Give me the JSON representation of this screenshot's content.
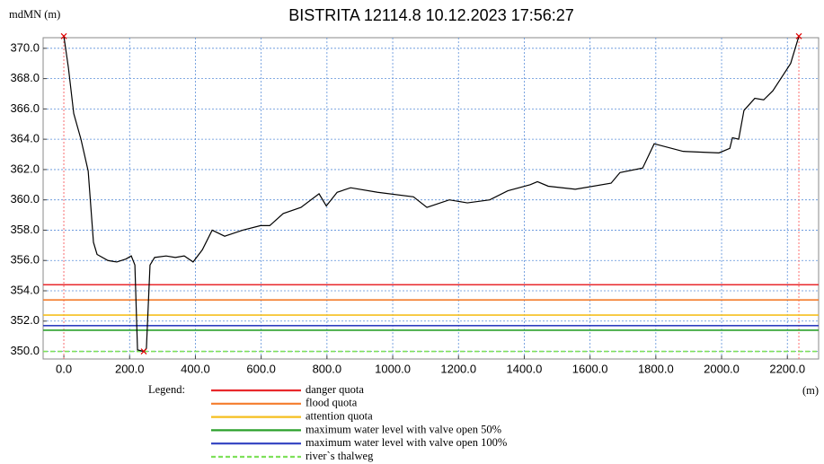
{
  "chart_data": {
    "type": "line",
    "title": "BISTRITA 12114.8  10.12.2023 17:56:27",
    "y_label": "mdMN (m)",
    "x_label": "(m)",
    "legend_title": "Legend:",
    "xlim": [
      -63,
      2295
    ],
    "ylim": [
      349.5,
      370.7
    ],
    "xticks": [
      {
        "value": 0,
        "label": "0.0"
      },
      {
        "value": 200,
        "label": "200.0"
      },
      {
        "value": 400,
        "label": "400.0"
      },
      {
        "value": 600,
        "label": "600.0"
      },
      {
        "value": 800,
        "label": "800.0"
      },
      {
        "value": 1000,
        "label": "1000.0"
      },
      {
        "value": 1200,
        "label": "1200.0"
      },
      {
        "value": 1400,
        "label": "1400.0"
      },
      {
        "value": 1600,
        "label": "1600.0"
      },
      {
        "value": 1800,
        "label": "1800.0"
      },
      {
        "value": 2000,
        "label": "2000.0"
      },
      {
        "value": 2200,
        "label": "2200.0"
      }
    ],
    "yticks": [
      {
        "value": 350,
        "label": "350.0"
      },
      {
        "value": 352,
        "label": "352.0"
      },
      {
        "value": 354,
        "label": "354.0"
      },
      {
        "value": 356,
        "label": "356.0"
      },
      {
        "value": 358,
        "label": "358.0"
      },
      {
        "value": 360,
        "label": "360.0"
      },
      {
        "value": 362,
        "label": "362.0"
      },
      {
        "value": 364,
        "label": "364.0"
      },
      {
        "value": 366,
        "label": "366.0"
      },
      {
        "value": 368,
        "label": "368.0"
      },
      {
        "value": 370,
        "label": "370.0"
      }
    ],
    "grid": true,
    "grid_color": "#5b8fd9",
    "profile": {
      "color": "#000000",
      "x": [
        0,
        14,
        30,
        52,
        74,
        90,
        101,
        134,
        161,
        189,
        205,
        216,
        224,
        243,
        251,
        262,
        276,
        311,
        339,
        366,
        393,
        421,
        451,
        489,
        544,
        598,
        626,
        667,
        721,
        776,
        798,
        831,
        872,
        954,
        1063,
        1104,
        1172,
        1227,
        1295,
        1350,
        1418,
        1440,
        1473,
        1555,
        1664,
        1691,
        1760,
        1795,
        1883,
        1992,
        2025,
        2033,
        2052,
        2068,
        2101,
        2128,
        2156,
        2183,
        2210,
        2235
      ],
      "values": [
        370.8,
        368.7,
        365.7,
        364.0,
        361.9,
        357.2,
        356.4,
        356.0,
        355.9,
        356.1,
        356.3,
        355.7,
        350.1,
        350.0,
        350.2,
        355.7,
        356.2,
        356.3,
        356.2,
        356.3,
        355.9,
        356.7,
        358.0,
        357.6,
        358.0,
        358.3,
        358.3,
        359.1,
        359.5,
        360.4,
        359.6,
        360.5,
        360.8,
        360.5,
        360.2,
        359.5,
        360.0,
        359.8,
        360.0,
        360.6,
        361.0,
        361.2,
        360.9,
        360.7,
        361.1,
        361.8,
        362.1,
        363.7,
        363.2,
        363.1,
        363.4,
        364.1,
        364.0,
        365.9,
        366.7,
        366.6,
        367.2,
        368.1,
        369.0,
        370.8
      ]
    },
    "markers": {
      "color": "#e00000",
      "x": [
        0,
        243,
        2235
      ],
      "values": [
        370.8,
        350.0,
        370.8
      ]
    },
    "verticals": {
      "color": "#ff7070",
      "x": [
        0,
        2235
      ]
    },
    "series": [
      {
        "name": "danger quota",
        "color": "#e8282c",
        "value": 354.4
      },
      {
        "name": "flood quota",
        "color": "#f47c2c",
        "value": 353.4
      },
      {
        "name": "attention quota",
        "color": "#f5bf1e",
        "value": 352.4
      },
      {
        "name": "maximum water level with valve open 50%",
        "color": "#2ca02c",
        "value": 351.4
      },
      {
        "name": "maximum water level with valve open 100%",
        "color": "#2f3fc0",
        "value": 351.7
      },
      {
        "name": "river`s thalweg",
        "color": "#7ee05a",
        "value": 350.0,
        "dashed": true
      }
    ]
  }
}
